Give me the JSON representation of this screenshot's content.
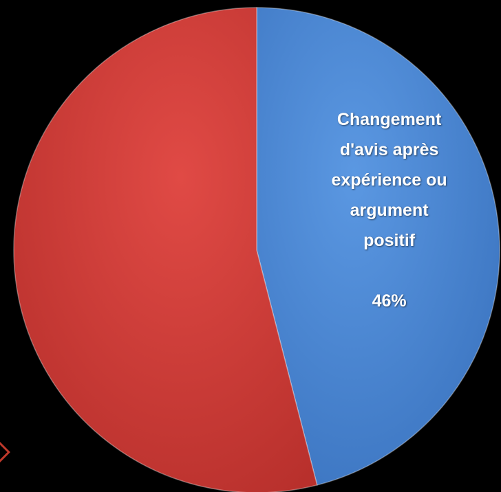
{
  "chart_data": {
    "type": "pie",
    "title": "",
    "slices": [
      {
        "label": "Changement d'avis après expérience ou argument positif",
        "label_lines": [
          "Changement",
          "d'avis après",
          "expérience ou",
          "argument",
          "positif"
        ],
        "value": 46,
        "value_label": "46%",
        "color": "#4a86d4"
      },
      {
        "label": "",
        "label_lines": [],
        "value": 54,
        "value_label": "",
        "color": "#d13d3a"
      }
    ],
    "start_angle_deg": 0,
    "direction": "clockwise",
    "legend": "none",
    "background": "#000000"
  }
}
